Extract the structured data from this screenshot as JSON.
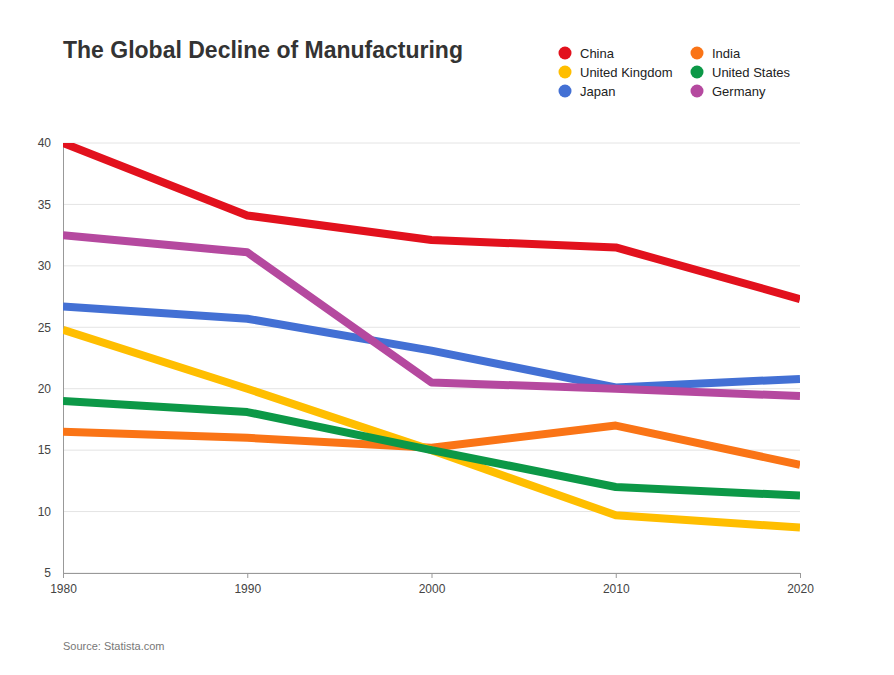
{
  "chart_data": {
    "type": "line",
    "title": "The Global Decline of Manufacturing",
    "source": "Source: Statista.com",
    "x": [
      1980,
      1990,
      2000,
      2010,
      2020
    ],
    "xlim": [
      1980,
      2020
    ],
    "xticks": [
      1980,
      1990,
      2000,
      2010,
      2020
    ],
    "ylim": [
      5,
      40
    ],
    "yticks": [
      5,
      10,
      15,
      20,
      25,
      30,
      35,
      40
    ],
    "grid": true,
    "legend": "top-right",
    "series": [
      {
        "name": "China",
        "color": "#e2111d",
        "values": [
          40,
          34.1,
          32.1,
          31.5,
          27.3
        ]
      },
      {
        "name": "India",
        "color": "#fa7416",
        "values": [
          16.5,
          16,
          15.2,
          17,
          13.8
        ]
      },
      {
        "name": "United Kingdom",
        "color": "#ffbe00",
        "values": [
          24.8,
          20,
          15,
          9.7,
          8.7
        ]
      },
      {
        "name": "United States",
        "color": "#0c9847",
        "values": [
          19,
          18.1,
          15,
          12,
          11.3
        ]
      },
      {
        "name": "Japan",
        "color": "#4370d4",
        "values": [
          26.7,
          25.7,
          23.1,
          20.1,
          20.8
        ]
      },
      {
        "name": "Germany",
        "color": "#b5499f",
        "values": [
          32.5,
          31.1,
          20.5,
          20,
          19.4
        ]
      }
    ]
  }
}
